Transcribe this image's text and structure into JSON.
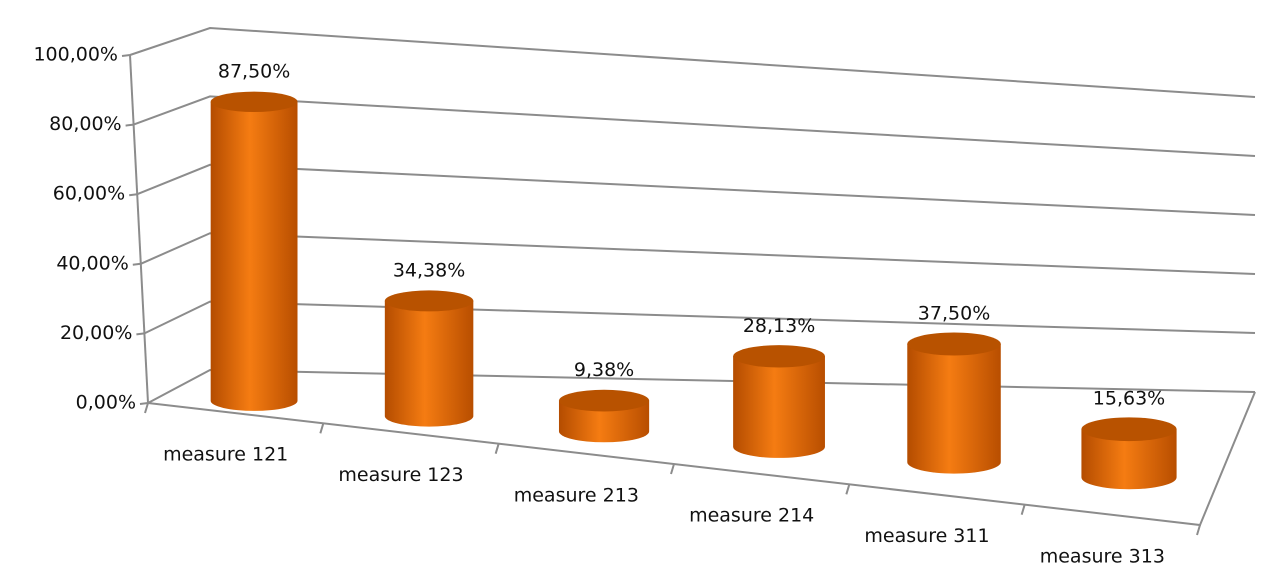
{
  "chart_data": {
    "type": "bar3d",
    "categories": [
      "measure 121",
      "measure 123",
      "measure 213",
      "measure 214",
      "measure 311",
      "measure 313"
    ],
    "values": [
      87.5,
      34.38,
      9.38,
      28.13,
      37.5,
      15.63
    ],
    "value_labels": [
      "87,50%",
      "34,38%",
      "9,38%",
      "28,13%",
      "37,50%",
      "15,63%"
    ],
    "color": "#f57c12",
    "ylim": [
      0,
      100
    ],
    "yticks": [
      {
        "value": 0,
        "label": "0,00%"
      },
      {
        "value": 20,
        "label": "20,00%"
      },
      {
        "value": 40,
        "label": "40,00%"
      },
      {
        "value": 60,
        "label": "60,00%"
      },
      {
        "value": 80,
        "label": "80,00%"
      },
      {
        "value": 100,
        "label": "100,00%"
      }
    ],
    "grid": true
  }
}
